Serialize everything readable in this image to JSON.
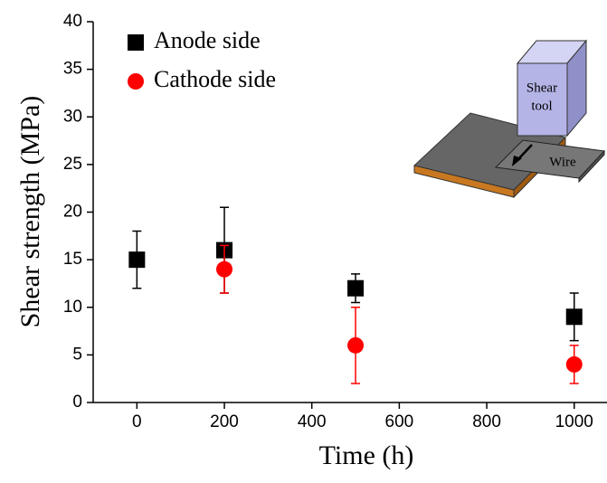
{
  "chart_data": {
    "type": "scatter",
    "x_label": "Time (h)",
    "y_label": "Shear strength (MPa)",
    "x": [
      0,
      200,
      500,
      1000
    ],
    "series": [
      {
        "name": "Anode side",
        "color": "#000000",
        "marker": "square",
        "values": [
          15,
          16,
          12,
          9
        ],
        "errors": [
          3,
          4.5,
          1.5,
          2.5
        ]
      },
      {
        "name": "Cathode side",
        "color": "#ff0000",
        "marker": "circle",
        "values": [
          null,
          14,
          6,
          4
        ],
        "errors": [
          null,
          2.5,
          4,
          2
        ]
      }
    ],
    "xlim": [
      -100,
      1075
    ],
    "xticks": [
      0,
      200,
      400,
      600,
      800,
      1000
    ],
    "ylim": [
      0,
      40
    ],
    "yticks": [
      0,
      5,
      10,
      15,
      20,
      25,
      30,
      35,
      40
    ],
    "inset_labels": [
      "Shear",
      "tool",
      "Wire"
    ]
  }
}
